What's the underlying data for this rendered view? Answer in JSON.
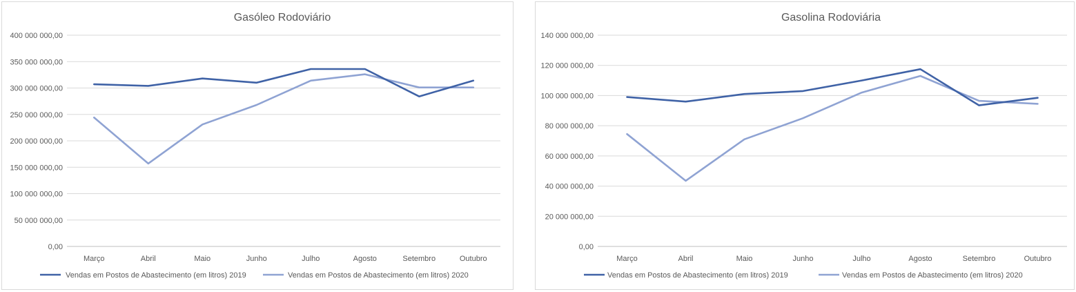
{
  "chart_data": [
    {
      "type": "line",
      "title": "Gasóleo Rodoviário",
      "categories": [
        "Março",
        "Abril",
        "Maio",
        "Junho",
        "Julho",
        "Agosto",
        "Setembro",
        "Outubro"
      ],
      "ylim": [
        0,
        400000000
      ],
      "y_ticks": [
        "0,00",
        "50 000 000,00",
        "100 000 000,00",
        "150 000 000,00",
        "200 000 000,00",
        "250 000 000,00",
        "300 000 000,00",
        "350 000 000,00",
        "400 000 000,00"
      ],
      "grid": true,
      "legend": "bottom",
      "series": [
        {
          "name": "Vendas em Postos de Abastecimento  (em litros) 2019",
          "color": "#3f62a6",
          "values": [
            307000000,
            304000000,
            318000000,
            310000000,
            336000000,
            336000000,
            284000000,
            314000000
          ]
        },
        {
          "name": "Vendas em Postos de Abastecimento  (em litros) 2020",
          "color": "#8fa3d3",
          "values": [
            244000000,
            157000000,
            231000000,
            268000000,
            314000000,
            326000000,
            301000000,
            301000000
          ]
        }
      ]
    },
    {
      "type": "line",
      "title": "Gasolina Rodoviária",
      "categories": [
        "Março",
        "Abril",
        "Maio",
        "Junho",
        "Julho",
        "Agosto",
        "Setembro",
        "Outubro"
      ],
      "ylim": [
        0,
        140000000
      ],
      "y_ticks": [
        "0,00",
        "20 000 000,00",
        "40 000 000,00",
        "60 000 000,00",
        "80 000 000,00",
        "100 000 000,00",
        "120 000 000,00",
        "140 000 000,00"
      ],
      "grid": true,
      "legend": "bottom",
      "series": [
        {
          "name": "Vendas em Postos de Abastecimento  (em litros) 2019",
          "color": "#3f62a6",
          "values": [
            99000000,
            96000000,
            101000000,
            103000000,
            110000000,
            117500000,
            93500000,
            98500000
          ]
        },
        {
          "name": "Vendas em Postos de Abastecimento  (em litros) 2020",
          "color": "#8fa3d3",
          "values": [
            74500000,
            43500000,
            71000000,
            85000000,
            102000000,
            113000000,
            96500000,
            94500000
          ]
        }
      ]
    }
  ]
}
